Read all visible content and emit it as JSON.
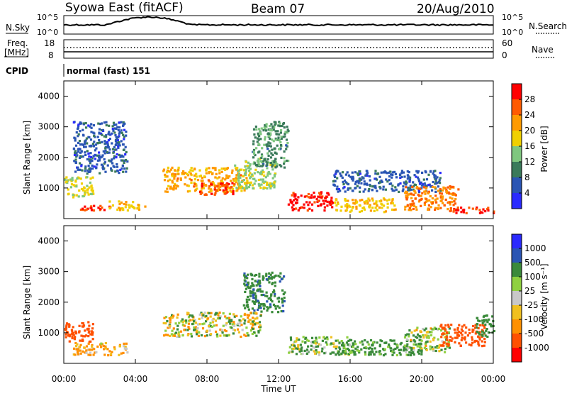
{
  "header": {
    "station": "Syowa East (fitACF)",
    "beam": "Beam 07",
    "date": "20/Aug/2010"
  },
  "noise_panel": {
    "left_label": "N.Sky",
    "left_ticks": [
      "10^5",
      "10^0"
    ],
    "right_label": "N.Search",
    "right_ticks": [
      "10^5",
      "10^0"
    ]
  },
  "freq_panel": {
    "left_label_line1": "Freq.",
    "left_label_line2": "[MHz]",
    "left_ticks": [
      "18",
      "8"
    ],
    "right_label": "Nave",
    "right_ticks": [
      "60",
      "0"
    ]
  },
  "cpid_panel": {
    "label": "CPID",
    "mode_text": "normal (fast) 151"
  },
  "power_panel": {
    "ylabel": "Slant Range [km]",
    "yticks": [
      "4000",
      "3000",
      "2000",
      "1000"
    ],
    "colorbar_label": "Power [dB]",
    "colorbar_ticks": [
      "28",
      "24",
      "20",
      "16",
      "12",
      "8",
      "4"
    ]
  },
  "velocity_panel": {
    "ylabel": "Slant Range [km]",
    "yticks": [
      "4000",
      "3000",
      "2000",
      "1000"
    ],
    "colorbar_label": "Velocity [m s⁻¹]",
    "colorbar_ticks": [
      "1000",
      "500",
      "100",
      "25",
      "-25",
      "-100",
      "-500",
      "-1000"
    ]
  },
  "xaxis": {
    "label": "Time UT",
    "ticks": [
      "00:00",
      "04:00",
      "08:00",
      "12:00",
      "16:00",
      "20:00",
      "00:00"
    ]
  },
  "colors": {
    "power_scale": [
      "#2a2aff",
      "#2a55b4",
      "#3a7a5a",
      "#7fc77f",
      "#f0d000",
      "#ff9a00",
      "#ff5a00",
      "#ff0000"
    ],
    "velocity_scale": [
      "#2a2aff",
      "#2a55b4",
      "#3a8a3a",
      "#8fd040",
      "#c8c8c8",
      "#f0c020",
      "#ff9000",
      "#ff5000",
      "#ff0000"
    ]
  },
  "chart_data": [
    {
      "type": "heatmap",
      "title": "Power",
      "x_range": [
        "00:00",
        "24:00"
      ],
      "ylim": [
        0,
        4500
      ],
      "zlim": [
        0,
        30
      ],
      "regions": [
        {
          "t0": 0.0,
          "t1": 1.6,
          "r0": 700,
          "r1": 1400,
          "z": 16
        },
        {
          "t0": 0.5,
          "t1": 3.5,
          "r0": 1500,
          "r1": 3200,
          "z": 6
        },
        {
          "t0": 0.8,
          "t1": 2.5,
          "r0": 300,
          "r1": 450,
          "z": 26
        },
        {
          "t0": 2.5,
          "t1": 4.5,
          "r0": 300,
          "r1": 600,
          "z": 18
        },
        {
          "t0": 5.5,
          "t1": 10.2,
          "r0": 900,
          "r1": 1700,
          "z": 20
        },
        {
          "t0": 7.5,
          "t1": 9.5,
          "r0": 800,
          "r1": 1200,
          "z": 26
        },
        {
          "t0": 9.5,
          "t1": 11.8,
          "r0": 1000,
          "r1": 2000,
          "z": 14
        },
        {
          "t0": 10.5,
          "t1": 12.5,
          "r0": 1700,
          "r1": 3200,
          "z": 10
        },
        {
          "t0": 12.5,
          "t1": 15.0,
          "r0": 300,
          "r1": 900,
          "z": 28
        },
        {
          "t0": 15.0,
          "t1": 18.5,
          "r0": 250,
          "r1": 700,
          "z": 18
        },
        {
          "t0": 15.0,
          "t1": 21.0,
          "r0": 900,
          "r1": 1600,
          "z": 6
        },
        {
          "t0": 19.0,
          "t1": 22.0,
          "r0": 300,
          "r1": 1100,
          "z": 22
        },
        {
          "t0": 21.5,
          "t1": 24.0,
          "r0": 200,
          "r1": 400,
          "z": 27
        }
      ]
    },
    {
      "type": "heatmap",
      "title": "Velocity",
      "x_range": [
        "00:00",
        "24:00"
      ],
      "ylim": [
        0,
        4500
      ],
      "zlim": [
        -1000,
        1000
      ],
      "regions": [
        {
          "t0": 0.0,
          "t1": 1.6,
          "r0": 700,
          "r1": 1400,
          "z": -800
        },
        {
          "t0": 0.5,
          "t1": 3.5,
          "r0": 300,
          "r1": 700,
          "z": -150
        },
        {
          "t0": 5.5,
          "t1": 11.0,
          "r0": 900,
          "r1": 1700,
          "z": 0
        },
        {
          "t0": 10.0,
          "t1": 12.3,
          "r0": 1700,
          "r1": 3000,
          "z": 400
        },
        {
          "t0": 12.5,
          "t1": 16.0,
          "r0": 300,
          "r1": 900,
          "z": 80
        },
        {
          "t0": 15.0,
          "t1": 20.0,
          "r0": 300,
          "r1": 800,
          "z": 200
        },
        {
          "t0": 19.0,
          "t1": 21.5,
          "r0": 400,
          "r1": 1200,
          "z": 60
        },
        {
          "t0": 21.0,
          "t1": 23.5,
          "r0": 600,
          "r1": 1300,
          "z": -700
        },
        {
          "t0": 23.0,
          "t1": 24.0,
          "r0": 900,
          "r1": 1600,
          "z": 300
        }
      ]
    }
  ]
}
